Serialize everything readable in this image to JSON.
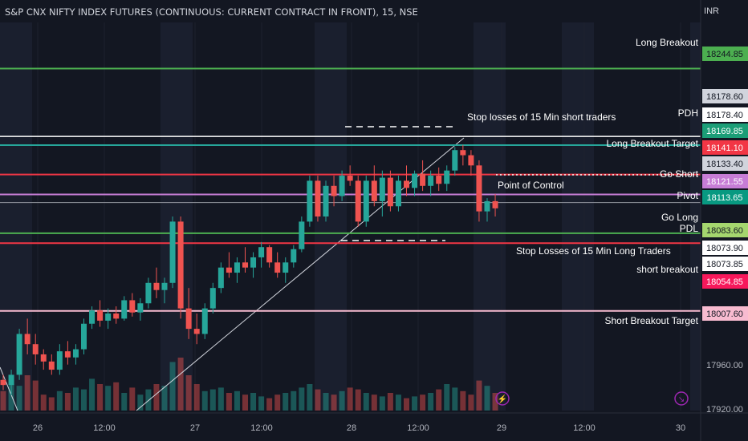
{
  "header": {
    "title": "S&P CNX NIFTY INDEX FUTURES (CONTINUOUS: CURRENT CONTRACT IN FRONT), 15, NSE",
    "currency": "INR"
  },
  "colors": {
    "background": "#131722",
    "up": "#26a69a",
    "down": "#ef5350",
    "grid": "#1e222d",
    "text": "#d1d4dc"
  },
  "chart_data": {
    "type": "candlestick",
    "ylim": [
      17910,
      18290
    ],
    "x_ticks": [
      "26",
      "12:00",
      "27",
      "12:00",
      "28",
      "12:00",
      "29",
      "12:00",
      "30"
    ],
    "y_ticks": [
      17920.0,
      17960.0
    ],
    "price_levels": [
      {
        "label": "Long Breakout",
        "value": 18244.85,
        "color": "#4caf50",
        "badge_bg": "#4caf50",
        "badge_fg": "#131722"
      },
      {
        "label": "",
        "value": 18178.6,
        "color": null,
        "badge_bg": "#d1d4dc",
        "badge_fg": "#131722"
      },
      {
        "label": "PDH",
        "value": 18178.4,
        "color": "#ffffff",
        "badge_bg": "#ffffff",
        "badge_fg": "#131722"
      },
      {
        "label": "",
        "value": 18169.85,
        "color": "#26a69a",
        "badge_bg": "#1b9e77",
        "badge_fg": "#ffffff"
      },
      {
        "label": "Long Breakout Target",
        "value": 18141.1,
        "color": "#f23645",
        "badge_bg": "#f23645",
        "badge_fg": "#ffffff"
      },
      {
        "label": "",
        "value": 18133.4,
        "color": null,
        "badge_bg": "#d1d4dc",
        "badge_fg": "#131722"
      },
      {
        "label": "Go Short",
        "value": 18121.55,
        "color": "#c77dd6",
        "badge_bg": "#c77dd6",
        "badge_fg": "#ffffff"
      },
      {
        "label": "Pivot",
        "value": 18113.65,
        "color": "#9598a1",
        "badge_bg": "#089981",
        "badge_fg": "#ffffff"
      },
      {
        "label": "Go Long",
        "value": 18083.6,
        "color": "#4caf50",
        "badge_bg": "#a5d66e",
        "badge_fg": "#131722"
      },
      {
        "label": "PDL",
        "value": 18073.9,
        "color": "#ffffff",
        "badge_bg": "#ffffff",
        "badge_fg": "#131722"
      },
      {
        "label": "short breakout",
        "value": 18073.85,
        "color": "#f23645",
        "badge_bg": "#ffffff",
        "badge_fg": "#131722"
      },
      {
        "label": "",
        "value": 18054.85,
        "color": null,
        "badge_bg": "#f7185b",
        "badge_fg": "#ffffff"
      },
      {
        "label": "Short  Breakout Target",
        "value": 18007.6,
        "color": "#f8bbd0",
        "badge_bg": "#f8bbd0",
        "badge_fg": "#131722"
      }
    ],
    "annotations": [
      {
        "text": "Stop losses of 15 Min short traders"
      },
      {
        "text": "Point of Control"
      },
      {
        "text": "Stop Losses of 15 Min Long Traders"
      }
    ],
    "candles": [
      [
        17940,
        17945,
        17930,
        17935
      ],
      [
        17935,
        17950,
        17925,
        17945
      ],
      [
        17945,
        17990,
        17940,
        17985
      ],
      [
        17985,
        18000,
        17965,
        17975
      ],
      [
        17975,
        17985,
        17955,
        17965
      ],
      [
        17965,
        17970,
        17950,
        17958
      ],
      [
        17958,
        17965,
        17945,
        17950
      ],
      [
        17950,
        17975,
        17945,
        17968
      ],
      [
        17968,
        17978,
        17955,
        17962
      ],
      [
        17962,
        17975,
        17955,
        17970
      ],
      [
        17970,
        18000,
        17965,
        17995
      ],
      [
        17995,
        18012,
        17990,
        18008
      ],
      [
        18008,
        18018,
        17992,
        17998
      ],
      [
        17998,
        18010,
        17990,
        18005
      ],
      [
        18005,
        18012,
        17995,
        18000
      ],
      [
        18000,
        18022,
        17998,
        18018
      ],
      [
        18018,
        18025,
        18002,
        18006
      ],
      [
        18006,
        18020,
        17998,
        18015
      ],
      [
        18015,
        18040,
        18010,
        18035
      ],
      [
        18035,
        18050,
        18020,
        18028
      ],
      [
        18028,
        18040,
        18015,
        18035
      ],
      [
        18035,
        18100,
        18030,
        18095
      ],
      [
        18095,
        18100,
        18000,
        18010
      ],
      [
        18010,
        18030,
        17980,
        17990
      ],
      [
        17990,
        18005,
        17975,
        17985
      ],
      [
        17985,
        18015,
        17980,
        18010
      ],
      [
        18010,
        18035,
        18005,
        18030
      ],
      [
        18030,
        18055,
        18025,
        18050
      ],
      [
        18050,
        18065,
        18040,
        18045
      ],
      [
        18045,
        18060,
        18035,
        18055
      ],
      [
        18055,
        18070,
        18045,
        18050
      ],
      [
        18050,
        18065,
        18040,
        18060
      ],
      [
        18060,
        18075,
        18050,
        18070
      ],
      [
        18070,
        18072,
        18050,
        18055
      ],
      [
        18055,
        18065,
        18040,
        18045
      ],
      [
        18045,
        18060,
        18035,
        18055
      ],
      [
        18055,
        18072,
        18050,
        18068
      ],
      [
        18068,
        18100,
        18065,
        18095
      ],
      [
        18095,
        18140,
        18090,
        18135
      ],
      [
        18135,
        18140,
        18095,
        18100
      ],
      [
        18100,
        18135,
        18095,
        18130
      ],
      [
        18130,
        18140,
        18110,
        18120
      ],
      [
        18120,
        18145,
        18115,
        18140
      ],
      [
        18140,
        18150,
        18130,
        18135
      ],
      [
        18135,
        18140,
        18090,
        18095
      ],
      [
        18095,
        18140,
        18090,
        18135
      ],
      [
        18135,
        18150,
        18110,
        18115
      ],
      [
        18115,
        18145,
        18100,
        18138
      ],
      [
        18138,
        18145,
        18105,
        18110
      ],
      [
        18110,
        18140,
        18105,
        18135
      ],
      [
        18135,
        18150,
        18120,
        18128
      ],
      [
        18128,
        18145,
        18120,
        18142
      ],
      [
        18142,
        18155,
        18125,
        18130
      ],
      [
        18130,
        18145,
        18120,
        18140
      ],
      [
        18140,
        18148,
        18125,
        18132
      ],
      [
        18132,
        18150,
        18125,
        18145
      ],
      [
        18145,
        18168,
        18140,
        18165
      ],
      [
        18165,
        18170,
        18150,
        18160
      ],
      [
        18160,
        18165,
        18140,
        18150
      ],
      [
        18150,
        18155,
        18095,
        18105
      ],
      [
        18105,
        18118,
        18095,
        18115
      ],
      [
        18115,
        18122,
        18100,
        18108
      ]
    ],
    "volumes": [
      22,
      30,
      28,
      40,
      34,
      18,
      15,
      22,
      20,
      26,
      24,
      36,
      30,
      28,
      32,
      20,
      26,
      18,
      24,
      30,
      28,
      55,
      60,
      40,
      30,
      22,
      24,
      26,
      20,
      22,
      18,
      20,
      16,
      14,
      18,
      20,
      22,
      26,
      30,
      24,
      20,
      18,
      22,
      26,
      24,
      20,
      18,
      16,
      20,
      18,
      14,
      16,
      18,
      20,
      24,
      30,
      26,
      22,
      18,
      34,
      28,
      20
    ]
  }
}
